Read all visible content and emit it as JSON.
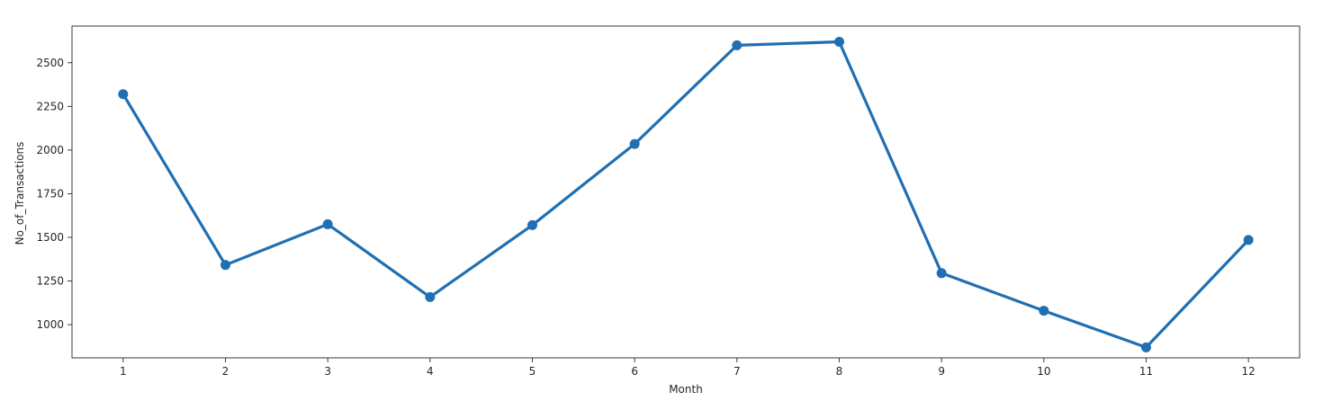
{
  "chart_data": {
    "type": "line",
    "xlabel": "Month",
    "ylabel": "No_of_Transactions",
    "categories": [
      "1",
      "2",
      "3",
      "4",
      "5",
      "6",
      "7",
      "8",
      "9",
      "10",
      "11",
      "12"
    ],
    "series": [
      {
        "values": [
          2320,
          1342,
          1575,
          1158,
          1570,
          2035,
          2600,
          2620,
          1295,
          1080,
          870,
          1485
        ]
      }
    ],
    "ylim": [
      810,
      2710
    ],
    "yticks": [
      1000,
      1250,
      1500,
      1750,
      2000,
      2250,
      2500
    ],
    "grid": false,
    "colors": {
      "line": "#1f6fb2",
      "axes": "#262626"
    }
  }
}
